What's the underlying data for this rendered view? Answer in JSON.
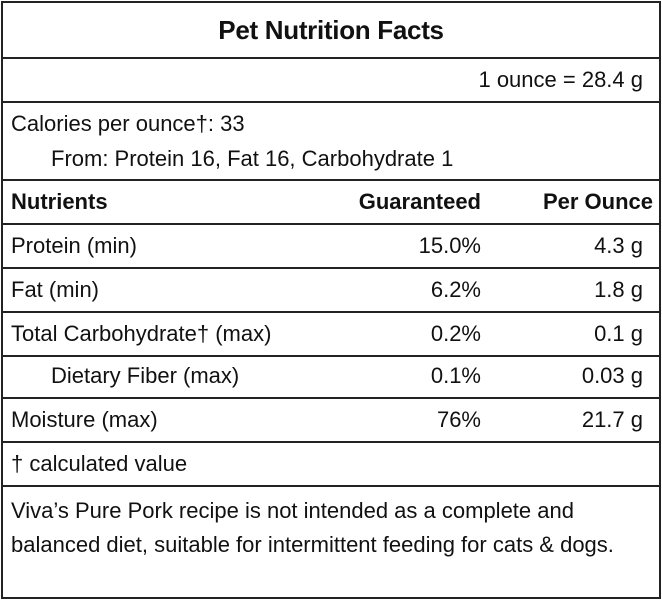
{
  "title": "Pet Nutrition Facts",
  "serving": "1 ounce = 28.4 g",
  "calories": {
    "line1": "Calories per ounce†: 33",
    "line2": "From: Protein 16, Fat 16, Carbohydrate 1"
  },
  "table": {
    "headers": [
      "Nutrients",
      "Guaranteed",
      "Per Ounce"
    ],
    "rows": [
      {
        "name": "Protein (min)",
        "guaranteed": "15.0%",
        "per_ounce": "4.3 g"
      },
      {
        "name": "Fat (min)",
        "guaranteed": "6.2%",
        "per_ounce": "1.8 g"
      },
      {
        "name": "Total Carbohydrate† (max)",
        "guaranteed": "0.2%",
        "per_ounce": "0.1 g"
      },
      {
        "name": "Dietary Fiber (max)",
        "guaranteed": "0.1%",
        "per_ounce": "0.03 g"
      },
      {
        "name": "Moisture (max)",
        "guaranteed": "76%",
        "per_ounce": "21.7 g"
      }
    ]
  },
  "footnote": "† calculated value",
  "statement": "Viva’s Pure Pork recipe is not intended as a complete and balanced diet, suitable for intermittent feeding for cats & dogs."
}
